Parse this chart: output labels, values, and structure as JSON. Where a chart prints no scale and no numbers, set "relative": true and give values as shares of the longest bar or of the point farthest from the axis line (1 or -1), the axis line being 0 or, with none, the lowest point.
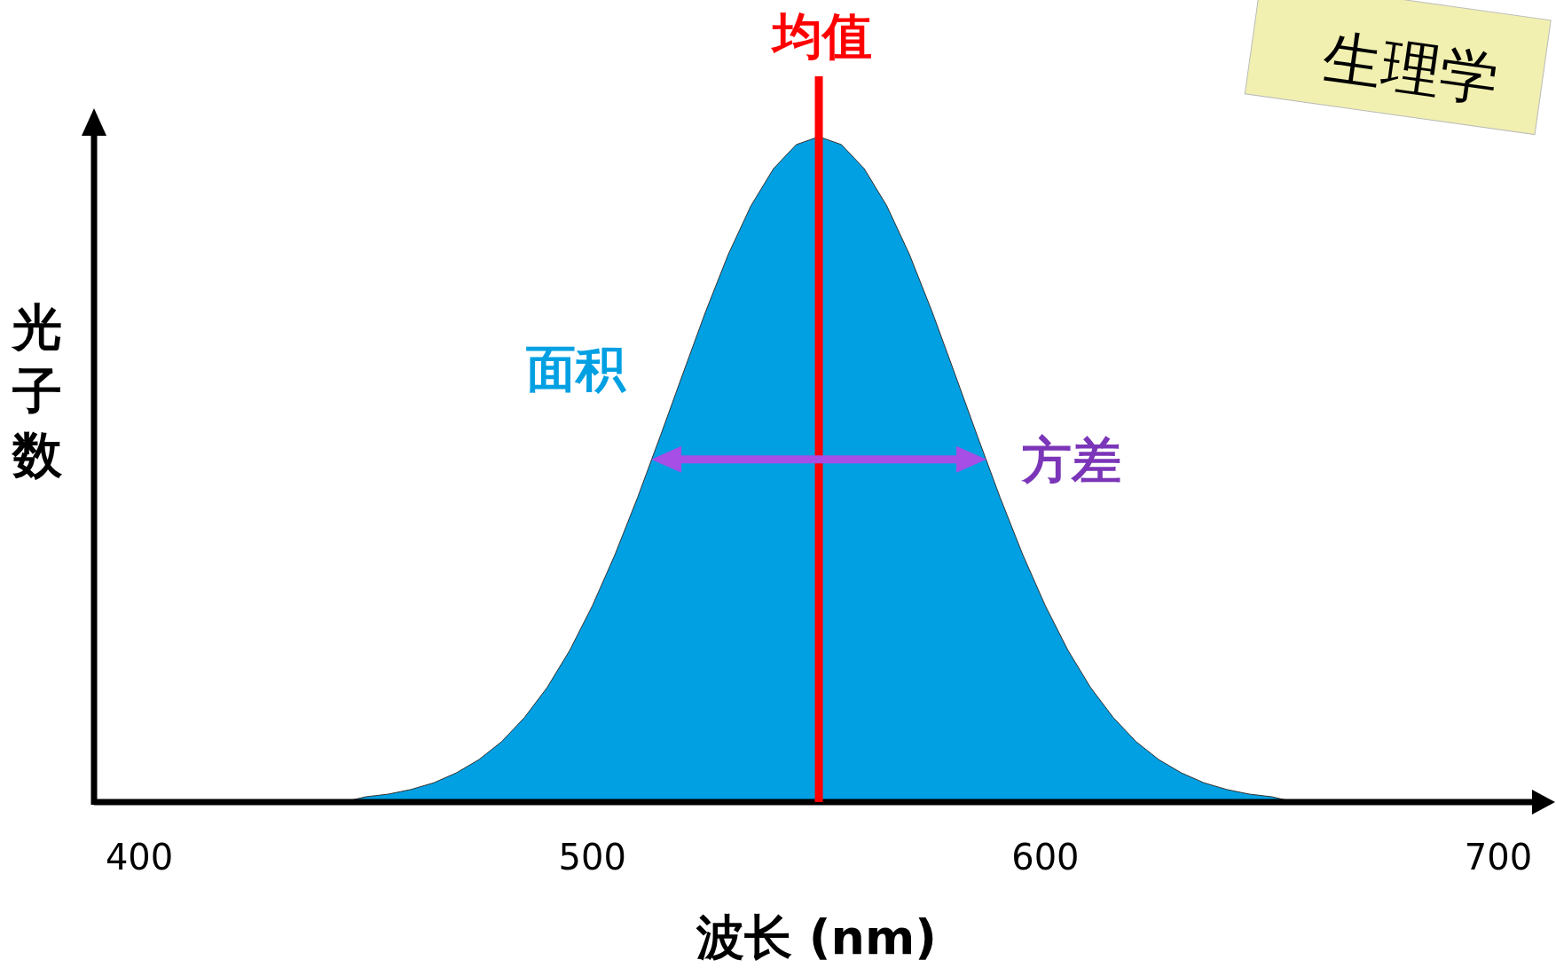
{
  "chart_data": {
    "type": "area",
    "relative": true,
    "xlabel": "波长 (nm)",
    "ylabel": "光子数",
    "xlim": [
      390,
      709
    ],
    "xticks": [
      400,
      500,
      600,
      700
    ],
    "grid": false,
    "series": [
      {
        "color": "#00a0e3",
        "x": [
          440,
          445,
          450,
          455,
          460,
          465,
          470,
          475,
          480,
          485,
          490,
          495,
          500,
          505,
          510,
          515,
          520,
          525,
          530,
          535,
          540,
          545,
          550,
          555,
          560,
          565,
          570,
          575,
          580,
          585,
          590,
          595,
          600,
          605,
          610,
          615,
          620,
          625,
          630,
          635,
          640,
          645,
          650,
          655,
          660
        ],
        "values": [
          0,
          0,
          0.008,
          0.012,
          0.019,
          0.029,
          0.044,
          0.064,
          0.091,
          0.127,
          0.172,
          0.228,
          0.295,
          0.372,
          0.458,
          0.55,
          0.644,
          0.737,
          0.823,
          0.896,
          0.952,
          0.988,
          1,
          0.988,
          0.952,
          0.896,
          0.823,
          0.737,
          0.644,
          0.55,
          0.458,
          0.372,
          0.295,
          0.228,
          0.172,
          0.127,
          0.091,
          0.064,
          0.044,
          0.029,
          0.019,
          0.012,
          0.008,
          0,
          0
        ]
      }
    ],
    "ref_lines": [
      {
        "axis": "x",
        "value": 550,
        "label": "均值",
        "color": "#ff0000"
      }
    ],
    "annotations": [
      "面积",
      {
        "text": "方差",
        "x": 587,
        "y": 0.515
      },
      "生理学"
    ]
  }
}
